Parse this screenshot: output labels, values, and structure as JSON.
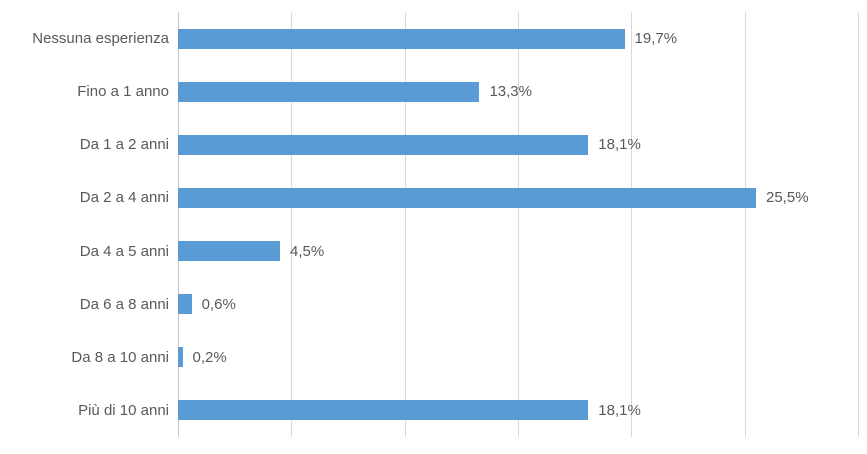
{
  "chart_data": {
    "type": "bar",
    "orientation": "horizontal",
    "title": "",
    "xlabel": "",
    "ylabel": "",
    "categories": [
      "Nessuna esperienza",
      "Fino a 1 anno",
      "Da 1 a 2 anni",
      "Da 2 a 4 anni",
      "Da 4 a 5 anni",
      "Da 6 a 8 anni",
      "Da 8 a 10 anni",
      "Più di 10 anni"
    ],
    "values": [
      19.7,
      13.3,
      18.1,
      25.5,
      4.5,
      0.6,
      0.2,
      18.1
    ],
    "data_labels": [
      "19,7%",
      "13,3%",
      "18,1%",
      "25,5%",
      "4,5%",
      "0,6%",
      "0,2%",
      "18,1%"
    ],
    "xlim": [
      0,
      30
    ],
    "gridline_interval": 5,
    "grid": true,
    "legend": false,
    "axis_tick_labels_visible": false,
    "colors": {
      "bar": "#5B9BD5",
      "gridline": "#D9D9D9",
      "axis_line": "#C6C6C6",
      "text": "#595959",
      "background": "#FFFFFF"
    }
  }
}
